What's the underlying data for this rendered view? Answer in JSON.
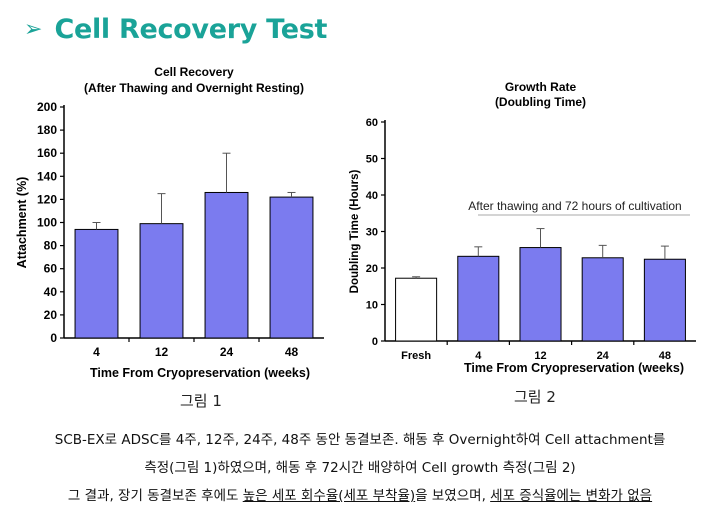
{
  "heading": {
    "arrow": "➢",
    "title": "Cell Recovery Test"
  },
  "chart_data": [
    {
      "type": "bar",
      "title_line1": "Cell Recovery",
      "title_line2": "(After Thawing and Overnight Resting)",
      "xlabel": "Time From Cryopreservation (weeks)",
      "ylabel": "Attachment (%)",
      "ylim": [
        0,
        200
      ],
      "yticks": [
        0,
        20,
        40,
        60,
        80,
        100,
        120,
        140,
        160,
        180,
        200
      ],
      "categories": [
        "4",
        "12",
        "24",
        "48"
      ],
      "values": [
        94,
        99,
        126,
        122
      ],
      "errors": [
        6,
        26,
        34,
        4
      ],
      "bar_colors": [
        "#7b7bef",
        "#7b7bef",
        "#7b7bef",
        "#7b7bef"
      ],
      "grid": false
    },
    {
      "type": "bar",
      "title_line1": "Growth Rate",
      "title_line2": "(Doubling Time)",
      "xlabel": "Time From Cryopreservation (weeks)",
      "ylabel": "Doubling Time (Hours)",
      "ylim": [
        0,
        60
      ],
      "yticks": [
        0,
        10,
        20,
        30,
        40,
        50,
        60
      ],
      "categories": [
        "Fresh",
        "4",
        "12",
        "24",
        "48"
      ],
      "values": [
        17.2,
        23.2,
        25.6,
        22.8,
        22.4
      ],
      "errors": [
        0.4,
        2.6,
        5.2,
        3.4,
        3.6
      ],
      "bar_colors": [
        "#ffffff",
        "#7b7bef",
        "#7b7bef",
        "#7b7bef",
        "#7b7bef"
      ],
      "annotation": "After thawing and 72 hours of cultivation",
      "grid": false
    }
  ],
  "captions": {
    "fig1": "그림 1",
    "fig2": "그림 2"
  },
  "description": {
    "line1": "SCB-EX로 ADSC를 4주, 12주, 24주, 48주 동안 동결보존. 해동 후 Overnight하여 Cell attachment를",
    "line2": "측정(그림 1)하였으며, 해동 후 72시간 배양하여 Cell growth 측정(그림 2)",
    "line3_a": "그 결과, 장기 동결보존 후에도 ",
    "line3_b": "높은 세포 회수율(세포 부착율)",
    "line3_c": "을 보였으며, ",
    "line3_d": "세포 증식율에는 변화가 없음"
  }
}
